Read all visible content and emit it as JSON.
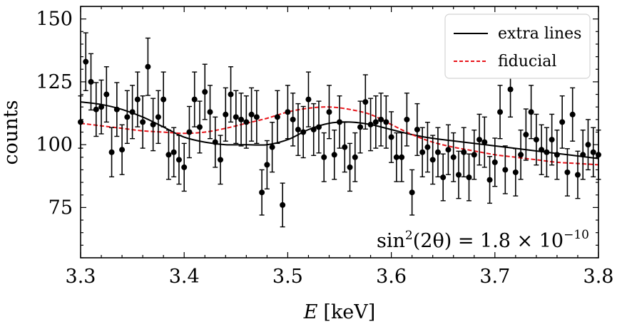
{
  "chart_data": {
    "type": "scatter",
    "title": "",
    "xlabel_var": "E",
    "xlabel_unit": "[keV]",
    "ylabel": "counts",
    "xlim": [
      3.3,
      3.8
    ],
    "ylim": [
      55,
      155
    ],
    "x_ticks": [
      3.3,
      3.4,
      3.5,
      3.6,
      3.7,
      3.8
    ],
    "x_tick_labels": [
      "3.3",
      "3.4",
      "3.5",
      "3.6",
      "3.7",
      "3.8"
    ],
    "y_ticks": [
      75,
      100,
      125,
      150
    ],
    "y_tick_labels": [
      "75",
      "100",
      "125",
      "150"
    ],
    "annotation": {
      "prefix": "sin",
      "sup1": "2",
      "middle": "(2θ) = 1.8 × 10",
      "sup2": "−10"
    },
    "legend": {
      "placement": "top-right",
      "entries": [
        {
          "label": "extra lines",
          "color": "#000000",
          "style": "solid"
        },
        {
          "label": "fiducial",
          "color": "#e8141a",
          "style": "dashed"
        }
      ]
    },
    "series": [
      {
        "name": "data",
        "marker": "circle",
        "color": "#000000",
        "x": [
          3.3,
          3.305,
          3.31,
          3.315,
          3.32,
          3.325,
          3.33,
          3.335,
          3.34,
          3.345,
          3.35,
          3.355,
          3.36,
          3.365,
          3.37,
          3.375,
          3.38,
          3.385,
          3.39,
          3.395,
          3.4,
          3.405,
          3.41,
          3.415,
          3.42,
          3.425,
          3.43,
          3.435,
          3.44,
          3.445,
          3.45,
          3.455,
          3.46,
          3.465,
          3.47,
          3.475,
          3.48,
          3.485,
          3.49,
          3.495,
          3.5,
          3.505,
          3.51,
          3.515,
          3.52,
          3.525,
          3.53,
          3.535,
          3.54,
          3.545,
          3.55,
          3.555,
          3.56,
          3.565,
          3.57,
          3.575,
          3.58,
          3.585,
          3.59,
          3.595,
          3.6,
          3.605,
          3.61,
          3.615,
          3.62,
          3.625,
          3.63,
          3.635,
          3.64,
          3.645,
          3.65,
          3.655,
          3.66,
          3.665,
          3.67,
          3.675,
          3.68,
          3.685,
          3.69,
          3.695,
          3.7,
          3.705,
          3.71,
          3.715,
          3.72,
          3.725,
          3.73,
          3.735,
          3.74,
          3.745,
          3.75,
          3.755,
          3.76,
          3.765,
          3.77,
          3.775,
          3.78,
          3.785,
          3.79,
          3.795,
          3.8
        ],
        "y": [
          109,
          133,
          125,
          114,
          115,
          120,
          97,
          114,
          98,
          111,
          113,
          118,
          109,
          131,
          108,
          111,
          118,
          96,
          97,
          94,
          91,
          105,
          118,
          107,
          121,
          113,
          101,
          94,
          112,
          120,
          111,
          110,
          109,
          112,
          111,
          81,
          92,
          99,
          111,
          76,
          113,
          110,
          106,
          105,
          118,
          106,
          107,
          95,
          113,
          96,
          109,
          99,
          91,
          95,
          107,
          117,
          108,
          109,
          110,
          109,
          103,
          95,
          95,
          110,
          81,
          106,
          97,
          99,
          94,
          97,
          87,
          98,
          95,
          88,
          97,
          87,
          96,
          102,
          101,
          86,
          93,
          113,
          90,
          122,
          89,
          96,
          104,
          113,
          102,
          98,
          97,
          102,
          96,
          109,
          89,
          112,
          88,
          96,
          100,
          97,
          96
        ],
        "yerr": [
          10.4,
          11.5,
          11.2,
          10.7,
          10.7,
          11.0,
          9.8,
          10.7,
          9.9,
          10.5,
          10.6,
          10.9,
          10.4,
          11.4,
          10.4,
          10.5,
          10.9,
          9.8,
          9.8,
          9.7,
          9.5,
          10.2,
          10.9,
          10.3,
          11.0,
          10.6,
          10.0,
          9.7,
          10.6,
          11.0,
          10.5,
          10.5,
          10.4,
          10.6,
          10.5,
          9.0,
          9.6,
          9.9,
          10.5,
          8.7,
          10.6,
          10.5,
          10.3,
          10.2,
          10.9,
          10.3,
          10.3,
          9.7,
          10.6,
          9.8,
          10.4,
          9.9,
          9.5,
          9.7,
          10.3,
          10.8,
          10.4,
          10.4,
          10.5,
          10.4,
          10.1,
          9.7,
          9.7,
          10.5,
          9.0,
          10.3,
          9.8,
          9.9,
          9.7,
          9.8,
          9.3,
          9.9,
          9.7,
          9.4,
          9.8,
          9.3,
          9.8,
          10.1,
          10.0,
          9.3,
          9.6,
          10.6,
          9.5,
          11.0,
          9.4,
          9.8,
          10.2,
          10.6,
          10.1,
          9.9,
          9.8,
          10.1,
          9.8,
          10.4,
          9.4,
          10.6,
          9.4,
          9.8,
          10.0,
          9.8,
          9.8
        ]
      },
      {
        "name": "extra lines",
        "type": "line",
        "color": "#000000",
        "x": [
          3.3,
          3.32,
          3.34,
          3.36,
          3.38,
          3.4,
          3.42,
          3.44,
          3.46,
          3.48,
          3.5,
          3.52,
          3.54,
          3.56,
          3.58,
          3.6,
          3.62,
          3.64,
          3.66,
          3.68,
          3.7,
          3.72,
          3.74,
          3.76,
          3.78,
          3.8
        ],
        "y": [
          117,
          116,
          114,
          111,
          107,
          103,
          101,
          100,
          100,
          100,
          102,
          106,
          108.5,
          109,
          108,
          106,
          104,
          102.5,
          101.5,
          100.5,
          99.5,
          98.5,
          97.5,
          96.5,
          95.5,
          94.5
        ]
      },
      {
        "name": "fiducial",
        "type": "line",
        "color": "#e8141a",
        "x": [
          3.3,
          3.32,
          3.34,
          3.36,
          3.38,
          3.4,
          3.42,
          3.44,
          3.46,
          3.48,
          3.5,
          3.52,
          3.54,
          3.56,
          3.58,
          3.6,
          3.62,
          3.64,
          3.66,
          3.68,
          3.7,
          3.72,
          3.74,
          3.76,
          3.78,
          3.8
        ],
        "y": [
          108.5,
          107.5,
          106.5,
          105.5,
          105,
          104.5,
          105,
          106.5,
          108.5,
          110.5,
          113,
          114.5,
          115,
          114,
          112,
          108,
          104,
          101,
          99,
          97.5,
          96,
          95,
          94,
          93,
          92.5,
          92
        ]
      }
    ]
  }
}
